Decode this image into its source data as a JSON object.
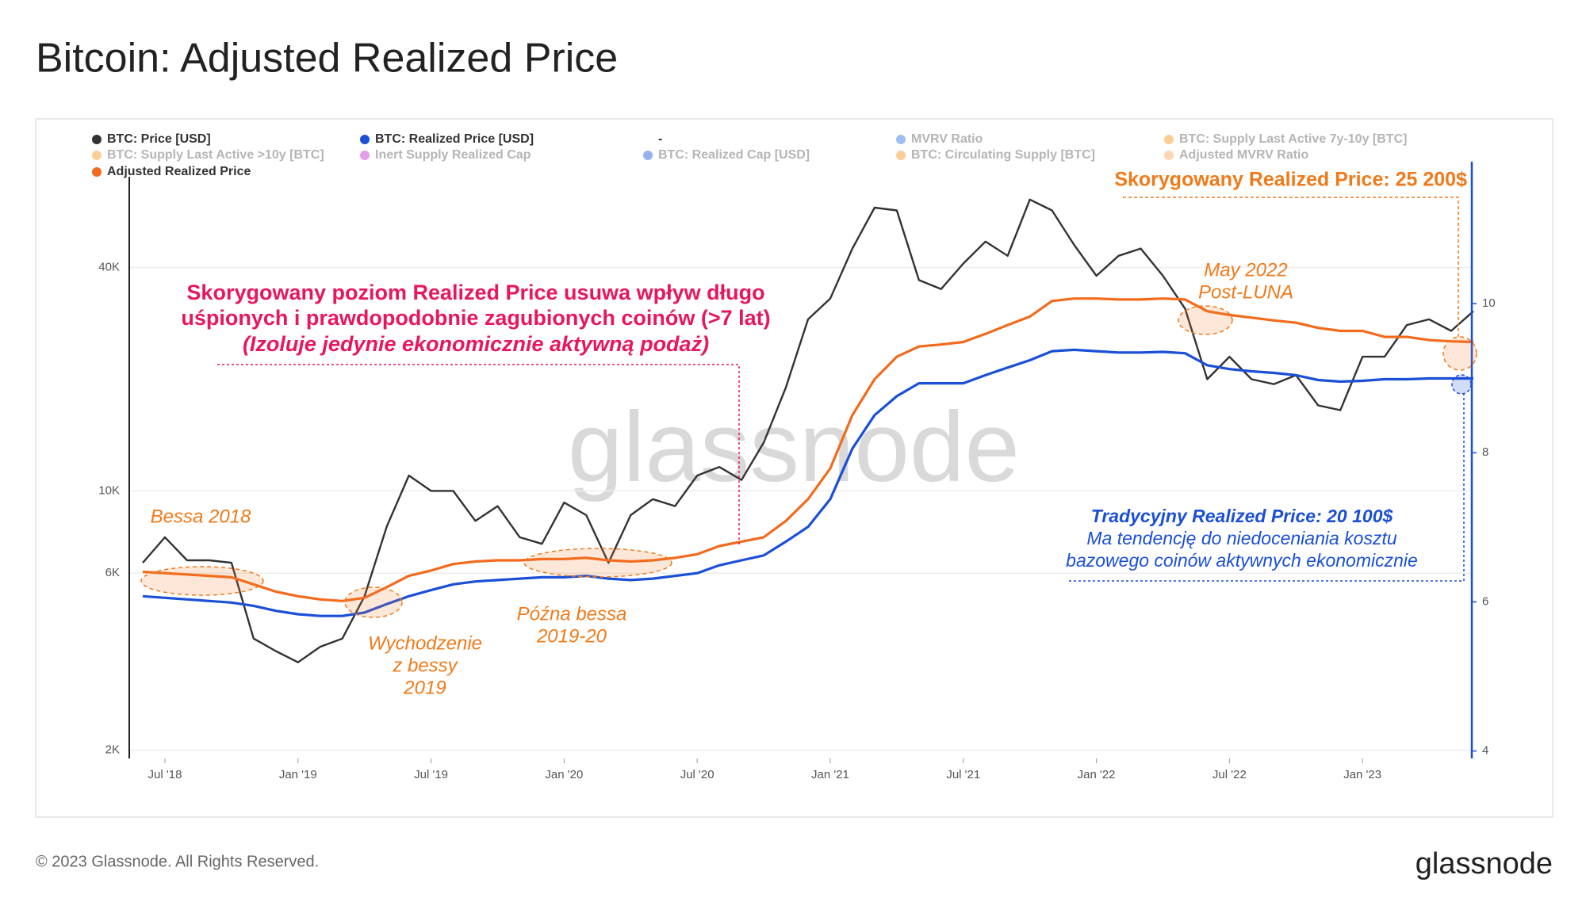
{
  "title": "Bitcoin: Adjusted Realized Price",
  "footer": "© 2023 Glassnode. All Rights Reserved.",
  "logo": "glassnode",
  "watermark": "glassnode",
  "chart_data": {
    "type": "line",
    "log_scale": true,
    "grid": true,
    "x": [
      "2018-06",
      "2018-07",
      "2018-08",
      "2018-09",
      "2018-10",
      "2018-11",
      "2018-12",
      "2019-01",
      "2019-02",
      "2019-03",
      "2019-04",
      "2019-05",
      "2019-06",
      "2019-07",
      "2019-08",
      "2019-09",
      "2019-10",
      "2019-11",
      "2019-12",
      "2020-01",
      "2020-02",
      "2020-03",
      "2020-04",
      "2020-05",
      "2020-06",
      "2020-07",
      "2020-08",
      "2020-09",
      "2020-10",
      "2020-11",
      "2020-12",
      "2021-01",
      "2021-02",
      "2021-03",
      "2021-04",
      "2021-05",
      "2021-06",
      "2021-07",
      "2021-08",
      "2021-09",
      "2021-10",
      "2021-11",
      "2021-12",
      "2022-01",
      "2022-02",
      "2022-03",
      "2022-04",
      "2022-05",
      "2022-06",
      "2022-07",
      "2022-08",
      "2022-09",
      "2022-10",
      "2022-11",
      "2022-12",
      "2023-01",
      "2023-02",
      "2023-03",
      "2023-04",
      "2023-05",
      "2023-06"
    ],
    "xlim": [
      "2018-06",
      "2023-06"
    ],
    "xticks": [
      {
        "value": "2018-07",
        "label": "Jul '18"
      },
      {
        "value": "2019-01",
        "label": "Jan '19"
      },
      {
        "value": "2019-07",
        "label": "Jul '19"
      },
      {
        "value": "2020-01",
        "label": "Jan '20"
      },
      {
        "value": "2020-07",
        "label": "Jul '20"
      },
      {
        "value": "2021-01",
        "label": "Jan '21"
      },
      {
        "value": "2021-07",
        "label": "Jul '21"
      },
      {
        "value": "2022-01",
        "label": "Jan '22"
      },
      {
        "value": "2022-07",
        "label": "Jul '22"
      },
      {
        "value": "2023-01",
        "label": "Jan '23"
      }
    ],
    "ylim": [
      1900,
      64000
    ],
    "yticks": [
      {
        "value": 2000,
        "label": "2K"
      },
      {
        "value": 6000,
        "label": "6K"
      },
      {
        "value": 10000,
        "label": "10K"
      },
      {
        "value": 40000,
        "label": "40K"
      }
    ],
    "y2lim": [
      3.9,
      11.5
    ],
    "y2ticks": [
      4,
      6,
      8,
      10
    ],
    "series": [
      {
        "name": "BTC: Price [USD]",
        "color": "#333333",
        "values": [
          6400,
          7500,
          6500,
          6500,
          6400,
          4000,
          3700,
          3450,
          3800,
          4000,
          5200,
          8000,
          11000,
          10000,
          10000,
          8300,
          9100,
          7500,
          7200,
          9300,
          8600,
          6400,
          8600,
          9500,
          9100,
          11000,
          11600,
          10700,
          13500,
          19000,
          29000,
          33000,
          45000,
          58000,
          57000,
          37000,
          35000,
          41000,
          47000,
          43000,
          61000,
          57000,
          46000,
          38000,
          43000,
          45000,
          38000,
          31000,
          20000,
          23000,
          20000,
          19400,
          20500,
          17000,
          16500,
          23000,
          23000,
          28000,
          29000,
          27000,
          30500
        ]
      },
      {
        "name": "BTC: Realized Price [USD]",
        "color": "#1a4fd6",
        "values": [
          5200,
          5150,
          5100,
          5050,
          5000,
          4900,
          4750,
          4650,
          4600,
          4600,
          4700,
          4950,
          5200,
          5400,
          5600,
          5700,
          5750,
          5800,
          5850,
          5850,
          5900,
          5800,
          5750,
          5800,
          5900,
          6000,
          6300,
          6500,
          6700,
          7300,
          8000,
          9500,
          13000,
          16000,
          18000,
          19500,
          19500,
          19500,
          20500,
          21500,
          22500,
          23800,
          24000,
          23800,
          23600,
          23600,
          23700,
          23500,
          21800,
          21300,
          21000,
          20800,
          20500,
          19900,
          19700,
          19800,
          20000,
          20000,
          20100,
          20100,
          20100
        ]
      },
      {
        "name": "-"
      },
      {
        "name": "MVRV Ratio",
        "color": "#2f6fe0",
        "hidden": true
      },
      {
        "name": "BTC: Supply Last Active 7y-10y [BTC]",
        "color": "#f7931a",
        "hidden": true
      },
      {
        "name": "BTC: Supply Last Active >10y [BTC]",
        "color": "#f7931a",
        "hidden": true
      },
      {
        "name": "Inert Supply Realized Cap",
        "color": "#c026d3",
        "hidden": true
      },
      {
        "name": "BTC: Realized Cap [USD]",
        "color": "#1a4fd6",
        "hidden": true
      },
      {
        "name": "BTC: Circulating Supply [BTC]",
        "color": "#f7931a",
        "hidden": true
      },
      {
        "name": "Adjusted MVRV Ratio",
        "color": "#f9a45c",
        "hidden": true
      },
      {
        "name": "Adjusted Realized Price",
        "color": "#f26b1d",
        "values": [
          6050,
          6000,
          5950,
          5900,
          5850,
          5600,
          5350,
          5200,
          5100,
          5050,
          5150,
          5500,
          5900,
          6100,
          6350,
          6450,
          6500,
          6500,
          6550,
          6550,
          6600,
          6500,
          6450,
          6500,
          6600,
          6750,
          7100,
          7300,
          7500,
          8300,
          9500,
          11500,
          16000,
          20000,
          23000,
          24500,
          24800,
          25200,
          26500,
          28000,
          29500,
          32500,
          33000,
          33000,
          32800,
          32800,
          33000,
          32800,
          30500,
          29800,
          29300,
          28800,
          28400,
          27500,
          27000,
          27000,
          26000,
          26000,
          25500,
          25300,
          25200
        ]
      }
    ],
    "annotations": {
      "adjusted_label": "Skorygowany Realized Price: 25 200$",
      "luna": [
        "May 2022",
        "Post-LUNA"
      ],
      "main": [
        "Skorygowany poziom Realized Price usuwa wpływ długo",
        "uśpionych i prawdopodobnie zagubionych coinów (>7 lat)",
        "(Izoluje jedynie ekonomicznie aktywną podaż)"
      ],
      "bear2018": "Bessa 2018",
      "exit2019": [
        "Wychodzenie",
        "z bessy",
        "2019"
      ],
      "late": [
        "Późna bessa",
        "2019-20"
      ],
      "traditional": [
        "Tradycyjny Realized Price: 20 100$",
        "Ma tendencję do niedoceniania kosztu",
        "bazowego coinów aktywnych ekonomicznie"
      ]
    }
  }
}
